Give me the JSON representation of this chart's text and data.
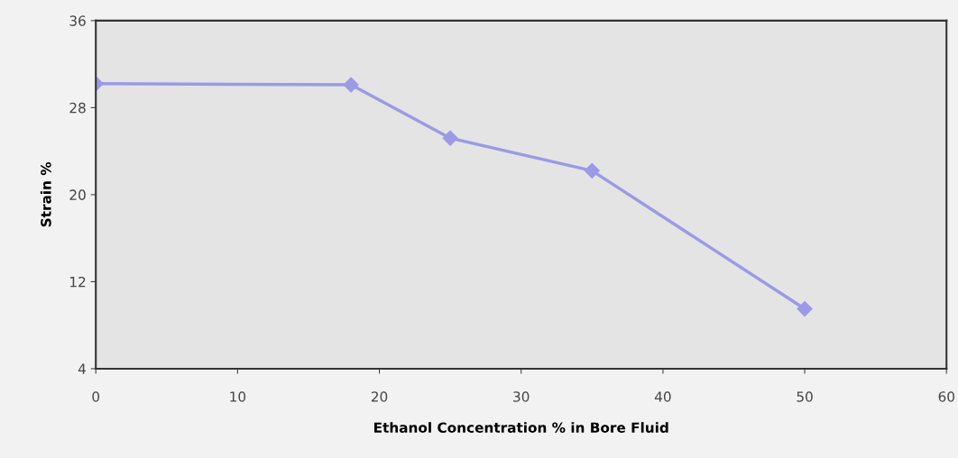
{
  "chart_data": {
    "type": "line",
    "xlabel": "Ethanol Concentration % in Bore Fluid",
    "ylabel": "Strain %",
    "x": [
      0,
      18,
      25,
      35,
      50
    ],
    "series": [
      {
        "color": "#9a9ae6",
        "values": [
          30.2,
          30.1,
          25.2,
          22.2,
          9.5
        ]
      }
    ],
    "xlim": [
      0,
      60
    ],
    "xticks": [
      0,
      10,
      20,
      30,
      40,
      50,
      60
    ],
    "ylim": [
      4,
      36
    ],
    "yticks": [
      4,
      12,
      20,
      28,
      36
    ],
    "marker": "diamond",
    "line_style": "solid",
    "grid": false,
    "legend": false
  }
}
